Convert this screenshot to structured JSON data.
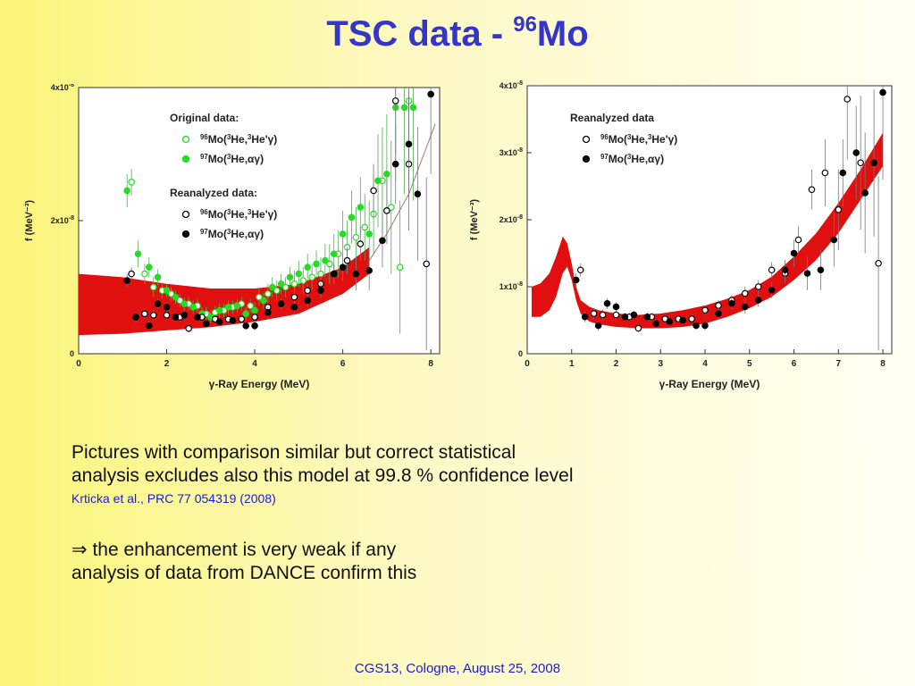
{
  "title": {
    "main": "TSC data - ",
    "superscript": "96",
    "element": "Mo"
  },
  "text": {
    "line1": "Pictures with comparison similar but correct statistical",
    "line2": "analysis excludes also this model at 99.8 % confidence level",
    "citation": "Krticka et al., PRC 77 054319 (2008)",
    "conclusion_arrow": "⇒",
    "conclusion_line1": " the enhancement is very weak if any",
    "conclusion_line2": "analysis of data from DANCE confirm this",
    "footer": "CGS13, Cologne, August 25, 2008"
  },
  "colors": {
    "title": "#3535c8",
    "band": "#e01010",
    "green": "#22dd22",
    "black": "#000000",
    "citation": "#1c1cd6"
  },
  "chart_data": [
    {
      "type": "scatter",
      "xlabel": "γ-Ray Energy (MeV)",
      "ylabel": "f (MeV⁻³)",
      "xlim": [
        0,
        8.2
      ],
      "ylim": [
        0,
        4e-08
      ],
      "xticks": [
        "0",
        "2",
        "4",
        "6",
        "8"
      ],
      "yticks": [
        {
          "value": 0,
          "base": "0",
          "exp": ""
        },
        {
          "value": 2e-08,
          "base": "2x10",
          "exp": "-8"
        },
        {
          "value": 4e-08,
          "base": "4x10",
          "exp": "-8"
        }
      ],
      "legend": {
        "heading1": "Original data:",
        "heading2": "Reanalyzed data:",
        "entries": [
          "96Mo(3He,3He'γ)",
          "97Mo(3He,αγ)",
          "96Mo(3He,3He'γ)",
          "97Mo(3He,αγ)"
        ]
      },
      "band": {
        "x": [
          0,
          1,
          2,
          3,
          4,
          5,
          6,
          6.6
        ],
        "upper": [
          1.2e-08,
          1.15e-08,
          1.05e-08,
          9.8e-09,
          9.8e-09,
          1.05e-08,
          1.3e-08,
          1.6e-08
        ],
        "lower": [
          2.8e-09,
          3e-09,
          3.5e-09,
          4e-09,
          4.8e-09,
          6e-09,
          9e-09,
          1.2e-08
        ]
      },
      "curve": {
        "x": [
          6.6,
          7.0,
          7.5,
          8.1
        ],
        "y": [
          1.4e-08,
          1.8e-08,
          2.4e-08,
          3.45e-08
        ]
      },
      "series": [
        {
          "name": "Original 96Mo(3He,3He'γ)",
          "style": "open-green",
          "x": [
            1.2,
            1.5,
            1.7,
            1.9,
            2.1,
            2.3,
            2.5,
            2.7,
            2.9,
            3.1,
            3.3,
            3.5,
            3.7,
            3.9,
            4.1,
            4.3,
            4.5,
            4.7,
            4.9,
            5.1,
            5.3,
            5.5,
            5.7,
            5.9,
            6.1,
            6.3,
            6.5,
            6.7,
            6.9,
            7.1,
            7.3,
            7.5
          ],
          "y": [
            2.58e-08,
            1.2e-08,
            1e-08,
            9.5e-09,
            9e-09,
            8e-09,
            7.5e-09,
            7.2e-09,
            6e-09,
            6.2e-09,
            6.5e-09,
            7e-09,
            7.5e-09,
            7.2e-09,
            8.5e-09,
            9e-09,
            9.5e-09,
            1e-08,
            1.05e-08,
            1.1e-08,
            1.15e-08,
            1.2e-08,
            1.35e-08,
            1.5e-08,
            1.6e-08,
            1.75e-08,
            1.9e-08,
            2.1e-08,
            2.6e-08,
            2.2e-08,
            1.3e-08,
            3.8e-08
          ],
          "err": [
            2e-09,
            1.5e-09,
            1.5e-09,
            1.2e-09,
            1e-09,
            1e-09,
            1e-09,
            1e-09,
            1e-09,
            1e-09,
            1e-09,
            1e-09,
            1e-09,
            1e-09,
            1.2e-09,
            1.5e-09,
            1.5e-09,
            1.5e-09,
            2e-09,
            2e-09,
            2e-09,
            2.5e-09,
            3e-09,
            3.5e-09,
            4e-09,
            4.5e-09,
            5e-09,
            6e-09,
            8e-09,
            1e-08,
            1e-08,
            1.2e-08
          ]
        },
        {
          "name": "Original 97Mo(3He,αγ)",
          "style": "filled-green",
          "x": [
            1.1,
            1.35,
            1.6,
            1.8,
            2.0,
            2.2,
            2.4,
            2.6,
            2.8,
            3.0,
            3.2,
            3.4,
            3.6,
            3.8,
            4.0,
            4.2,
            4.4,
            4.6,
            4.8,
            5.0,
            5.2,
            5.4,
            5.6,
            5.8,
            6.0,
            6.2,
            6.4,
            6.6,
            6.8,
            7.0,
            7.2,
            7.4,
            7.6
          ],
          "y": [
            2.45e-08,
            1.5e-08,
            1.3e-08,
            1.15e-08,
            9.5e-09,
            8.5e-09,
            7.5e-09,
            7e-09,
            6e-09,
            5.5e-09,
            6.5e-09,
            7e-09,
            7.2e-09,
            6e-09,
            6.5e-09,
            8e-09,
            1e-08,
            1.05e-08,
            1.15e-08,
            1.2e-08,
            1.3e-08,
            1.35e-08,
            1.4e-08,
            1.5e-08,
            1.8e-08,
            2.05e-08,
            2.2e-08,
            1.8e-08,
            2.6e-08,
            2.7e-08,
            3.7e-08,
            3.7e-08,
            3.7e-08
          ],
          "err": [
            2.5e-09,
            2e-09,
            1.5e-09,
            1.2e-09,
            1e-09,
            1e-09,
            1e-09,
            1e-09,
            1e-09,
            1e-09,
            1e-09,
            1e-09,
            1e-09,
            1e-09,
            1.2e-09,
            1.2e-09,
            1.5e-09,
            1.5e-09,
            1.5e-09,
            2e-09,
            2e-09,
            2e-09,
            2.5e-09,
            3e-09,
            3.5e-09,
            4e-09,
            4.5e-09,
            5e-09,
            7e-09,
            9e-09,
            1.1e-08,
            1.3e-08,
            1.4e-08
          ]
        },
        {
          "name": "Reanalyzed 96Mo(3He,3He'γ)",
          "style": "open-black",
          "x": [
            1.2,
            1.5,
            1.7,
            2.0,
            2.3,
            2.5,
            2.8,
            3.1,
            3.4,
            3.7,
            4.0,
            4.3,
            4.6,
            4.9,
            5.2,
            5.5,
            5.8,
            6.1,
            6.4,
            6.7,
            7.0,
            7.2,
            7.5,
            7.9
          ],
          "y": [
            1.2e-08,
            6e-09,
            5.8e-09,
            5.8e-09,
            5.5e-09,
            3.8e-09,
            5.5e-09,
            5.2e-09,
            5.2e-09,
            5.2e-09,
            5.5e-09,
            7e-09,
            7.5e-09,
            8.5e-09,
            9.5e-09,
            1.05e-08,
            1.2e-08,
            1.4e-08,
            1.65e-08,
            2.45e-08,
            2.15e-08,
            3.8e-08,
            2.85e-08,
            1.35e-08
          ],
          "err": [
            1e-09,
            8e-10,
            8e-10,
            7e-10,
            6e-10,
            6e-10,
            6e-10,
            6e-10,
            6e-10,
            6e-10,
            7e-10,
            8e-10,
            8e-10,
            1e-09,
            1e-09,
            1.2e-09,
            1.5e-09,
            2e-09,
            2.5e-09,
            4e-09,
            5e-09,
            8e-09,
            1e-08,
            1.3e-08
          ]
        },
        {
          "name": "Reanalyzed 97Mo(3He,αγ)",
          "style": "filled-black",
          "x": [
            1.1,
            1.3,
            1.6,
            1.8,
            2.0,
            2.2,
            2.4,
            2.7,
            2.9,
            3.2,
            3.5,
            3.8,
            4.0,
            4.3,
            4.6,
            4.9,
            5.2,
            5.5,
            5.8,
            6.0,
            6.3,
            6.6,
            6.9,
            7.2,
            7.5,
            7.7,
            8.0
          ],
          "y": [
            1.1e-08,
            5.5e-09,
            4.2e-09,
            7.5e-09,
            7e-09,
            5.5e-09,
            5.8e-09,
            5.5e-09,
            4.5e-09,
            4.8e-09,
            5e-09,
            4.2e-09,
            4.2e-09,
            6.2e-09,
            7.5e-09,
            7e-09,
            8e-09,
            9.5e-09,
            1.2e-08,
            1.3e-08,
            1.2e-08,
            1.25e-08,
            1.7e-08,
            2.85e-08,
            3.15e-08,
            2.4e-08,
            3.9e-08
          ],
          "err": [
            1e-09,
            8e-10,
            7e-10,
            8e-10,
            7e-10,
            6e-10,
            6e-10,
            6e-10,
            6e-10,
            6e-10,
            6e-10,
            6e-10,
            7e-10,
            8e-10,
            8e-10,
            1e-09,
            1e-09,
            1.2e-09,
            1.5e-09,
            2e-09,
            2.5e-09,
            3e-09,
            4e-09,
            6e-09,
            8e-09,
            1e-08,
            1.2e-08
          ]
        }
      ]
    },
    {
      "type": "scatter",
      "xlabel": "γ-Ray Energy (MeV)",
      "ylabel": "f (MeV⁻³)",
      "xlim": [
        0,
        8.2
      ],
      "ylim": [
        0,
        4e-08
      ],
      "xticks": [
        "0",
        "1",
        "2",
        "3",
        "4",
        "5",
        "6",
        "7",
        "8"
      ],
      "yticks": [
        {
          "value": 0,
          "base": "0",
          "exp": ""
        },
        {
          "value": 1e-08,
          "base": "1x10",
          "exp": "-8"
        },
        {
          "value": 2e-08,
          "base": "2x10",
          "exp": "-8"
        },
        {
          "value": 3e-08,
          "base": "3x10",
          "exp": "-8"
        },
        {
          "value": 4e-08,
          "base": "4x10",
          "exp": "-8"
        }
      ],
      "legend": {
        "heading1": "Reanalyzed data",
        "entries": [
          "96Mo(3He,3He'γ)",
          "97Mo(3He,αγ)"
        ]
      },
      "band": {
        "x": [
          0.1,
          0.3,
          0.5,
          0.65,
          0.8,
          0.9,
          1.0,
          1.1,
          1.2,
          1.4,
          1.6,
          2.0,
          2.5,
          3.0,
          3.5,
          4.0,
          4.5,
          5.0,
          5.5,
          6.0,
          6.5,
          7.0,
          7.5,
          8.0
        ],
        "upper": [
          1e-08,
          1.05e-08,
          1.2e-08,
          1.45e-08,
          1.75e-08,
          1.65e-08,
          1.35e-08,
          1e-08,
          8e-09,
          7e-09,
          6.5e-09,
          6e-09,
          5.8e-09,
          6e-09,
          6.5e-09,
          7.2e-09,
          8.2e-09,
          9.5e-09,
          1.15e-08,
          1.45e-08,
          1.8e-08,
          2.25e-08,
          2.75e-08,
          3.3e-08
        ],
        "lower": [
          5.5e-09,
          5.5e-09,
          6.5e-09,
          8.5e-09,
          1.2e-08,
          1.3e-08,
          1.1e-08,
          8e-09,
          6e-09,
          4.8e-09,
          4.4e-09,
          4e-09,
          3.8e-09,
          3.8e-09,
          4e-09,
          4.5e-09,
          5.5e-09,
          6.8e-09,
          8.5e-09,
          1.1e-08,
          1.4e-08,
          1.8e-08,
          2.3e-08,
          2.8e-08
        ]
      },
      "series": [
        {
          "name": "96Mo(3He,3He'γ)",
          "style": "open-black",
          "x": [
            1.2,
            1.5,
            1.7,
            2.0,
            2.3,
            2.5,
            2.8,
            3.1,
            3.4,
            3.7,
            4.0,
            4.3,
            4.6,
            4.9,
            5.2,
            5.5,
            5.8,
            6.1,
            6.4,
            6.7,
            7.0,
            7.2,
            7.5,
            7.9
          ],
          "y": [
            1.25e-08,
            6e-09,
            5.8e-09,
            5.8e-09,
            5.5e-09,
            3.8e-09,
            5.5e-09,
            5.2e-09,
            5.2e-09,
            5.2e-09,
            6.5e-09,
            7.2e-09,
            8e-09,
            9e-09,
            1e-08,
            1.25e-08,
            1.2e-08,
            1.7e-08,
            2.45e-08,
            2.7e-08,
            2.15e-08,
            3.8e-08,
            2.85e-08,
            1.35e-08
          ],
          "err": [
            1e-09,
            8e-10,
            8e-10,
            7e-10,
            6e-10,
            6e-10,
            6e-10,
            6e-10,
            6e-10,
            6e-10,
            7e-10,
            8e-10,
            8e-10,
            1e-09,
            1e-09,
            1.2e-09,
            1.5e-09,
            2e-09,
            3e-09,
            5e-09,
            6e-09,
            9e-09,
            1e-08,
            1.3e-08
          ]
        },
        {
          "name": "97Mo(3He,αγ)",
          "style": "filled-black",
          "x": [
            1.1,
            1.3,
            1.6,
            1.8,
            2.0,
            2.2,
            2.4,
            2.7,
            2.9,
            3.2,
            3.5,
            3.8,
            4.0,
            4.3,
            4.6,
            4.9,
            5.2,
            5.5,
            5.8,
            6.0,
            6.3,
            6.6,
            6.9,
            7.1,
            7.4,
            7.6,
            7.8,
            8.0
          ],
          "y": [
            1.1e-08,
            5.5e-09,
            4.2e-09,
            7.5e-09,
            7e-09,
            5.5e-09,
            5.8e-09,
            5.5e-09,
            4.5e-09,
            4.8e-09,
            5e-09,
            4.2e-09,
            4.2e-09,
            6e-09,
            7.5e-09,
            7e-09,
            8e-09,
            9.5e-09,
            1.25e-08,
            1.5e-08,
            1.2e-08,
            1.25e-08,
            1.7e-08,
            2.7e-08,
            3e-08,
            2.4e-08,
            2.85e-08,
            3.9e-08
          ],
          "err": [
            1e-09,
            8e-10,
            7e-10,
            8e-10,
            7e-10,
            6e-10,
            6e-10,
            6e-10,
            6e-10,
            6e-10,
            6e-10,
            6e-10,
            7e-10,
            8e-10,
            8e-10,
            1e-09,
            1e-09,
            1.2e-09,
            1.5e-09,
            2e-09,
            2.5e-09,
            3e-09,
            4e-09,
            5e-09,
            7e-09,
            9e-09,
            1.1e-08,
            1.3e-08
          ]
        }
      ]
    }
  ]
}
